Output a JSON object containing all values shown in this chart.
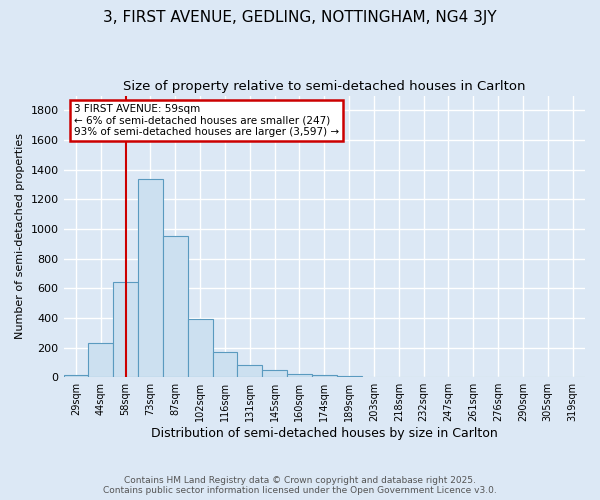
{
  "title1": "3, FIRST AVENUE, GEDLING, NOTTINGHAM, NG4 3JY",
  "title2": "Size of property relative to semi-detached houses in Carlton",
  "xlabel": "Distribution of semi-detached houses by size in Carlton",
  "ylabel": "Number of semi-detached properties",
  "categories": [
    "29sqm",
    "44sqm",
    "58sqm",
    "73sqm",
    "87sqm",
    "102sqm",
    "116sqm",
    "131sqm",
    "145sqm",
    "160sqm",
    "174sqm",
    "189sqm",
    "203sqm",
    "218sqm",
    "232sqm",
    "247sqm",
    "261sqm",
    "276sqm",
    "290sqm",
    "305sqm",
    "319sqm"
  ],
  "values": [
    15,
    230,
    645,
    1340,
    955,
    395,
    170,
    85,
    50,
    25,
    15,
    5,
    2,
    1,
    0,
    0,
    0,
    0,
    0,
    0,
    0
  ],
  "bar_color": "#cce0f0",
  "bar_edge_color": "#5a9abf",
  "highlight_index": 2,
  "vline_color": "#cc0000",
  "annotation_text": "3 FIRST AVENUE: 59sqm\n← 6% of semi-detached houses are smaller (247)\n93% of semi-detached houses are larger (3,597) →",
  "annotation_box_color": "#cc0000",
  "ylim": [
    0,
    1900
  ],
  "footer1": "Contains HM Land Registry data © Crown copyright and database right 2025.",
  "footer2": "Contains public sector information licensed under the Open Government Licence v3.0.",
  "bg_color": "#dce8f5",
  "plot_bg_color": "#dce8f5",
  "grid_color": "#ffffff",
  "title1_fontsize": 11,
  "title2_fontsize": 9.5
}
